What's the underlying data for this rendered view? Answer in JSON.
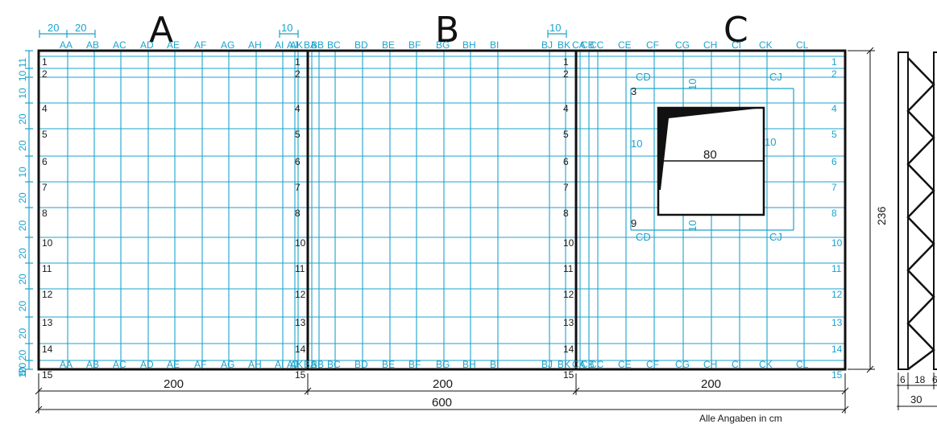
{
  "panels": [
    {
      "letter": "A",
      "columns": [
        "AA",
        "AB",
        "AC",
        "AD",
        "AE",
        "AF",
        "AG",
        "AH",
        "AI",
        "AJ",
        "AK"
      ]
    },
    {
      "letter": "B",
      "columns": [
        "BA",
        "BB",
        "BC",
        "BD",
        "BE",
        "BF",
        "BG",
        "BH",
        "BI",
        "BJ",
        "BK"
      ]
    },
    {
      "letter": "C",
      "columns": [
        "CA",
        "CB",
        "CC",
        "CE",
        "CF",
        "CG",
        "CH",
        "CI",
        "CK",
        "CL"
      ]
    }
  ],
  "row_labels": [
    "1",
    "2",
    "4",
    "5",
    "6",
    "7",
    "8",
    "10",
    "11",
    "12",
    "13",
    "14",
    "15"
  ],
  "left_spacings": [
    "11",
    "10",
    "10",
    "20",
    "20",
    "10",
    "20",
    "20",
    "20",
    "20",
    "20",
    "20",
    "20",
    "20",
    "5",
    "10"
  ],
  "top_spacings": [
    "20",
    "20",
    "10",
    "10"
  ],
  "opening": {
    "width": "80",
    "side_offset": "10",
    "top_offset": "10",
    "bottom_offset": "10",
    "labels": [
      "CD",
      "CJ",
      "3",
      "9",
      "CD",
      "CJ"
    ]
  },
  "dims": {
    "panel_width": "200",
    "total_width": "600",
    "height": "236",
    "section_parts": [
      "6",
      "18",
      "6"
    ],
    "section_total": "30"
  },
  "footnote": "Alle Angaben in cm",
  "colors": {
    "grid": "#1ba3cc",
    "outline": "#111111"
  }
}
